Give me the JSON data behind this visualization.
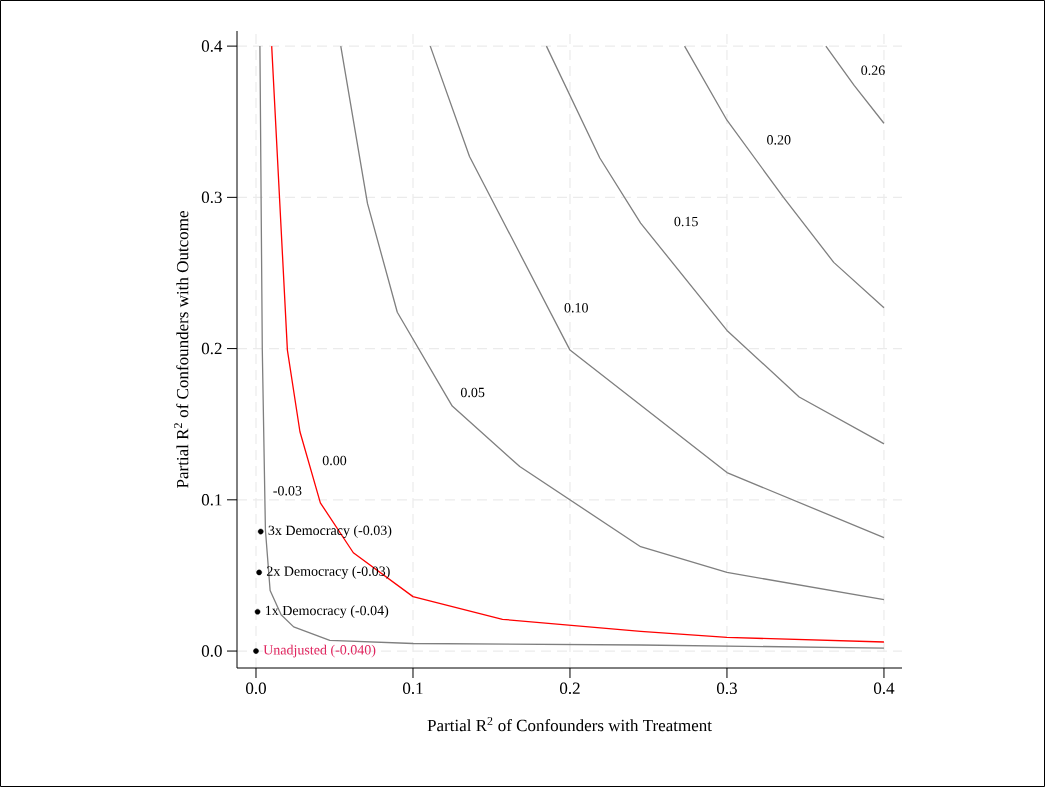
{
  "chart_data": {
    "type": "line",
    "xlabel": "Partial R$^{2}$ of Confounders with Treatment",
    "ylabel": "Partial R$^{2}$ of Confounders with Outcome",
    "xlim": [
      -0.0121,
      0.4115
    ],
    "ylim": [
      -0.0112,
      0.41
    ],
    "xticks": [
      {
        "value": 0,
        "label": "0.0"
      },
      {
        "value": 0.1,
        "label": "0.1"
      },
      {
        "value": 0.2,
        "label": "0.2"
      },
      {
        "value": 0.3,
        "label": "0.3"
      },
      {
        "value": 0.4,
        "label": "0.4"
      }
    ],
    "yticks": [
      {
        "value": 0,
        "label": "0.0"
      },
      {
        "value": 0.1,
        "label": "0.1"
      },
      {
        "value": 0.2,
        "label": "0.2"
      },
      {
        "value": 0.3,
        "label": "0.3"
      },
      {
        "value": 0.4,
        "label": "0.4"
      }
    ],
    "grid": true,
    "series": [
      {
        "color": "#7f7f7f",
        "x": [
          0.363,
          0.381,
          0.4
        ],
        "values": [
          0.4,
          0.374,
          0.349
        ]
      },
      {
        "color": "#7f7f7f",
        "x": [
          0.273,
          0.3,
          0.336,
          0.368,
          0.4
        ],
        "values": [
          0.4,
          0.351,
          0.3,
          0.257,
          0.227
        ]
      },
      {
        "color": "#7f7f7f",
        "x": [
          0.185,
          0.219,
          0.245,
          0.3,
          0.346,
          0.4
        ],
        "values": [
          0.4,
          0.326,
          0.283,
          0.212,
          0.168,
          0.137
        ]
      },
      {
        "color": "#7f7f7f",
        "x": [
          0.111,
          0.136,
          0.168,
          0.2,
          0.3,
          0.4
        ],
        "values": [
          0.4,
          0.327,
          0.263,
          0.199,
          0.118,
          0.075
        ]
      },
      {
        "color": "#7f7f7f",
        "x": [
          0.054,
          0.071,
          0.09,
          0.125,
          0.168,
          0.245,
          0.3,
          0.4
        ],
        "values": [
          0.4,
          0.296,
          0.224,
          0.162,
          0.122,
          0.069,
          0.052,
          0.034
        ]
      },
      {
        "color": "#ff0000",
        "x": [
          0.01,
          0.02,
          0.028,
          0.041,
          0.062,
          0.1,
          0.157,
          0.245,
          0.3,
          0.4
        ],
        "values": [
          0.4,
          0.199,
          0.145,
          0.098,
          0.065,
          0.036,
          0.021,
          0.013,
          0.009,
          0.006
        ]
      },
      {
        "color": "#7f7f7f",
        "x": [
          0.0025,
          0.004,
          0.006,
          0.009,
          0.016,
          0.024,
          0.047,
          0.1,
          0.245,
          0.4
        ],
        "values": [
          0.4,
          0.2,
          0.08,
          0.04,
          0.024,
          0.016,
          0.007,
          0.005,
          0.004,
          0.002
        ]
      },
      {
        "type": "scatter",
        "name": "Unadjusted (-0.040)",
        "marker": "circle",
        "color": "#000000",
        "x": [
          0
        ],
        "values": [
          0
        ]
      },
      {
        "type": "scatter",
        "name": "1x Democracy (-0.04)",
        "marker": "circle",
        "color": "#000000",
        "x": [
          0.001
        ],
        "values": [
          0.026
        ]
      },
      {
        "type": "scatter",
        "name": "2x Democracy (-0.03)",
        "marker": "circle",
        "color": "#000000",
        "x": [
          0.002
        ],
        "values": [
          0.052
        ]
      },
      {
        "type": "scatter",
        "name": "3x Democracy (-0.03)",
        "marker": "circle",
        "color": "#000000",
        "x": [
          0.003
        ],
        "values": [
          0.079
        ]
      }
    ],
    "annotations": [
      "0.26",
      "0.20",
      "0.15",
      "0.10",
      "0.05",
      "0.00",
      "-0.03"
    ]
  }
}
